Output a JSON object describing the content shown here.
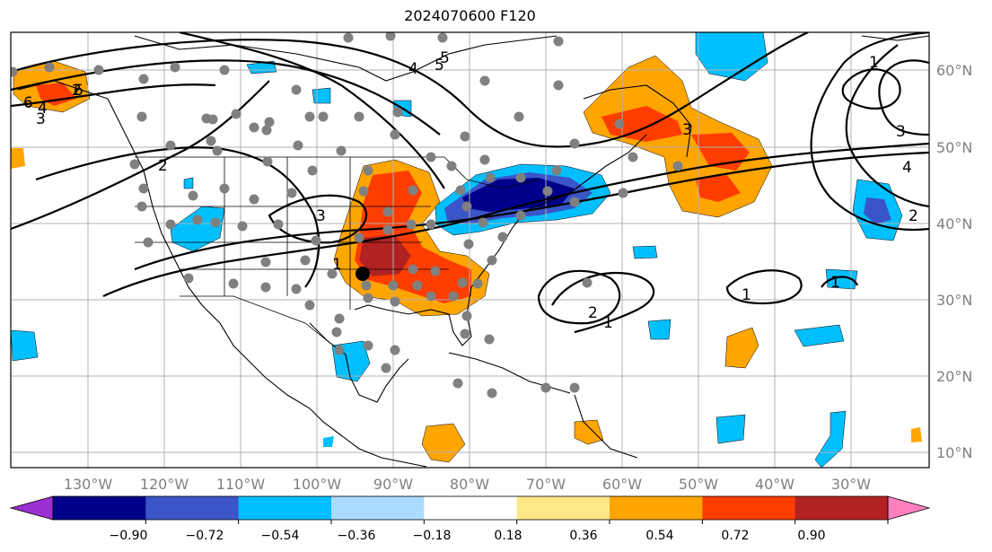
{
  "title": "2024070600 F120",
  "map": {
    "lon_labels": [
      "130°W",
      "120°W",
      "110°W",
      "100°W",
      "90°W",
      "80°W",
      "70°W",
      "60°W",
      "50°W",
      "40°W",
      "30°W"
    ],
    "lat_labels": [
      "60°N",
      "50°N",
      "40°N",
      "30°N",
      "20°N",
      "10°N"
    ]
  },
  "colorbar": {
    "ticks": [
      "−0.90",
      "−0.72",
      "−0.54",
      "−0.36",
      "−0.18",
      "0.18",
      "0.36",
      "0.54",
      "0.72",
      "0.90"
    ],
    "colors": [
      "#9b30d0",
      "#00008b",
      "#3a55c8",
      "#00bfff",
      "#aadcff",
      "#ffffff",
      "#ffe88a",
      "#ffa500",
      "#ff3d00",
      "#b22222",
      "#ff7fbf"
    ]
  },
  "contour_labels": [
    "2",
    "6",
    "4",
    "5",
    "3",
    "4",
    "5",
    "6",
    "1",
    "2",
    "3",
    "3",
    "3",
    "4",
    "2",
    "2",
    "1",
    "1",
    "1",
    "1"
  ],
  "colors": {
    "neg_strong": "#00008b",
    "neg_mid": "#3a55c8",
    "neg_light": "#00bfff",
    "pos_light": "#ffa500",
    "pos_mid": "#ff3d00",
    "pos_strong": "#b22222",
    "station": "#808080",
    "grid": "#b0b0b0"
  }
}
